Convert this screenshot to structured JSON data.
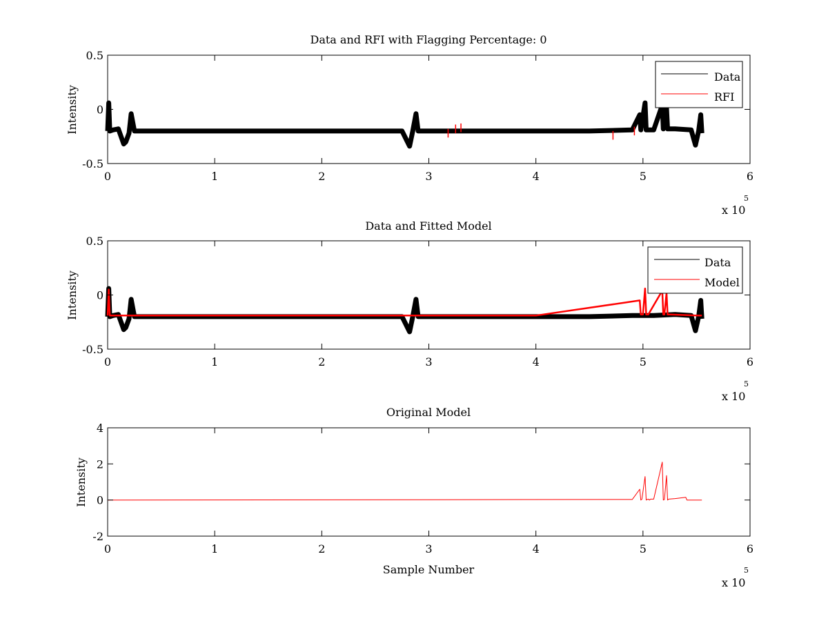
{
  "chart_data": [
    {
      "type": "line",
      "title": "Data and RFI with Flagging Percentage: 0",
      "xlabel": "",
      "ylabel": "Intensity",
      "xlim": [
        0,
        6
      ],
      "ylim": [
        -0.5,
        0.5
      ],
      "xticks": [
        "0",
        "1",
        "2",
        "3",
        "4",
        "5",
        "6"
      ],
      "yticks": [
        "0.5",
        "0",
        "-0.5"
      ],
      "x_multiplier": "x 10",
      "x_multiplier_exp": "5",
      "legend": {
        "placement": "top-right",
        "entries": [
          "Data",
          "RFI"
        ]
      },
      "series": [
        {
          "name": "Data",
          "color": "#000000",
          "x": [
            0,
            0.01,
            0.02,
            0.05,
            0.1,
            0.15,
            0.17,
            0.2,
            0.22,
            0.25,
            0.5,
            1,
            1.5,
            2,
            2.5,
            2.75,
            2.82,
            2.85,
            2.88,
            2.9,
            3,
            3.5,
            4,
            4.5,
            4.9,
            4.97,
            4.98,
            5.02,
            5.03,
            5.1,
            5.18,
            5.19,
            5.22,
            5.23,
            5.3,
            5.45,
            5.49,
            5.52,
            5.54,
            5.55
          ],
          "y": [
            -0.2,
            0.06,
            -0.2,
            -0.19,
            -0.18,
            -0.32,
            -0.3,
            -0.22,
            -0.04,
            -0.2,
            -0.2,
            -0.2,
            -0.2,
            -0.2,
            -0.2,
            -0.2,
            -0.34,
            -0.2,
            -0.04,
            -0.2,
            -0.2,
            -0.2,
            -0.2,
            -0.2,
            -0.19,
            -0.05,
            -0.19,
            0.06,
            -0.19,
            -0.19,
            0.04,
            -0.18,
            0.01,
            -0.18,
            -0.18,
            -0.19,
            -0.33,
            -0.2,
            -0.05,
            -0.22
          ]
        },
        {
          "name": "RFI",
          "color": "#ff0000",
          "x": [
            3.18,
            3.25,
            3.3,
            4.72,
            4.92
          ],
          "y": [
            -0.22,
            -0.18,
            -0.17,
            -0.24,
            -0.2
          ]
        }
      ]
    },
    {
      "type": "line",
      "title": "Data and Fitted Model",
      "xlabel": "",
      "ylabel": "Intensity",
      "xlim": [
        0,
        6
      ],
      "ylim": [
        -0.5,
        0.5
      ],
      "xticks": [
        "0",
        "1",
        "2",
        "3",
        "4",
        "5",
        "6"
      ],
      "yticks": [
        "0.5",
        "0",
        "-0.5"
      ],
      "x_multiplier": "x 10",
      "x_multiplier_exp": "5",
      "legend": {
        "placement": "top-right",
        "entries": [
          "Data",
          "Model"
        ]
      },
      "series": [
        {
          "name": "Data",
          "color": "#000000",
          "x": [
            0,
            0.01,
            0.02,
            0.05,
            0.1,
            0.15,
            0.17,
            0.2,
            0.22,
            0.25,
            0.5,
            1,
            1.5,
            2,
            2.5,
            2.75,
            2.82,
            2.85,
            2.88,
            2.9,
            3,
            3.5,
            4,
            4.5,
            4.9,
            5.1,
            5.3,
            5.45,
            5.49,
            5.52,
            5.54,
            5.55
          ],
          "y": [
            -0.2,
            0.06,
            -0.2,
            -0.19,
            -0.18,
            -0.32,
            -0.3,
            -0.22,
            -0.04,
            -0.2,
            -0.2,
            -0.2,
            -0.2,
            -0.2,
            -0.2,
            -0.2,
            -0.34,
            -0.2,
            -0.04,
            -0.2,
            -0.2,
            -0.2,
            -0.2,
            -0.2,
            -0.19,
            -0.19,
            -0.18,
            -0.19,
            -0.33,
            -0.2,
            -0.05,
            -0.22
          ]
        },
        {
          "name": "Model",
          "color": "#ff0000",
          "x": [
            0,
            0.01,
            0.02,
            0.04,
            0.25,
            1,
            2,
            3,
            4,
            4.97,
            4.98,
            5.0,
            5.02,
            5.03,
            5.05,
            5.18,
            5.19,
            5.2,
            5.22,
            5.23,
            5.25,
            5.5,
            5.55
          ],
          "y": [
            -0.19,
            0.05,
            -0.19,
            -0.19,
            -0.19,
            -0.19,
            -0.19,
            -0.19,
            -0.19,
            -0.05,
            -0.18,
            -0.18,
            0.06,
            -0.18,
            -0.18,
            0.04,
            -0.18,
            -0.18,
            0.02,
            -0.18,
            -0.18,
            -0.19,
            -0.19
          ]
        }
      ]
    },
    {
      "type": "line",
      "title": "Original Model",
      "xlabel": "Sample Number",
      "ylabel": "Intensity",
      "xlim": [
        0,
        6
      ],
      "ylim": [
        -2,
        4
      ],
      "xticks": [
        "0",
        "1",
        "2",
        "3",
        "4",
        "5",
        "6"
      ],
      "yticks": [
        "4",
        "2",
        "0",
        "-2"
      ],
      "x_multiplier": "x 10",
      "x_multiplier_exp": "5",
      "series": [
        {
          "color": "#ff0000",
          "x": [
            0,
            4.9,
            4.97,
            4.98,
            4.99,
            5.02,
            5.03,
            5.04,
            5.05,
            5.06,
            5.07,
            5.1,
            5.18,
            5.19,
            5.2,
            5.22,
            5.23,
            5.24,
            5.3,
            5.4,
            5.41,
            5.42,
            5.55
          ],
          "y": [
            0,
            0.03,
            0.6,
            0,
            0.04,
            1.3,
            0,
            0.03,
            0.05,
            0,
            0.05,
            0.05,
            2.1,
            0,
            0.03,
            1.35,
            0,
            0.05,
            0.08,
            0.15,
            0,
            0,
            0
          ]
        }
      ]
    }
  ]
}
